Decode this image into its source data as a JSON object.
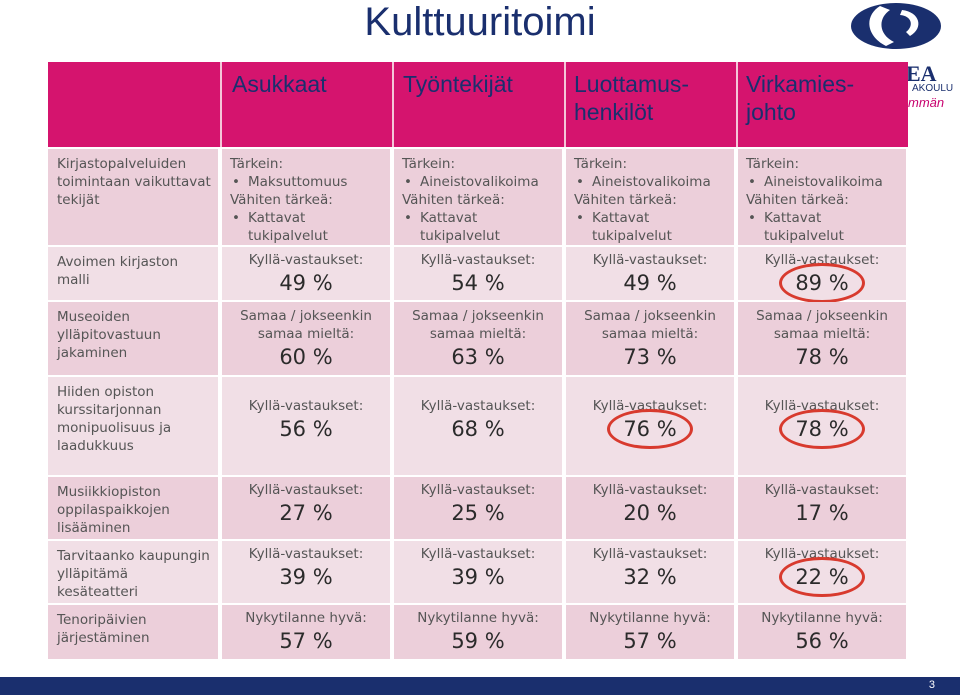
{
  "title": "Kulttuuritoimi",
  "logo": {
    "text1": "EA",
    "text2": "AKOULU",
    "text3": "mmän"
  },
  "headers": [
    "Asukkaat",
    "Työntekijät",
    "Luottamus-\nhenkilöt",
    "Virkamies-\njohto"
  ],
  "rows": [
    {
      "label": "Kirjastopalveluiden\ntoimintaan vaikuttavat\ntekijät",
      "cells": [
        {
          "l1": "Tärkein:",
          "l2": "Maksuttomuus",
          "l3": "Vähiten tärkeä:",
          "l4": "Kattavat",
          "l5": "tukipalvelut"
        },
        {
          "l1": "Tärkein:",
          "l2": "Aineistovalikoima",
          "l3": "Vähiten tärkeä:",
          "l4": "Kattavat",
          "l5": "tukipalvelut"
        },
        {
          "l1": "Tärkein:",
          "l2": "Aineistovalikoima",
          "l3": "Vähiten tärkeä:",
          "l4": "Kattavat",
          "l5": "tukipalvelut"
        },
        {
          "l1": "Tärkein:",
          "l2": "Aineistovalikoima",
          "l3": "Vähiten tärkeä:",
          "l4": "Kattavat",
          "l5": "tukipalvelut"
        }
      ]
    },
    {
      "label": "Avoimen kirjaston\nmalli",
      "cells": [
        {
          "caption": "Kyllä-vastaukset:",
          "value": "49 %"
        },
        {
          "caption": "Kyllä-vastaukset:",
          "value": "54 %"
        },
        {
          "caption": "Kyllä-vastaukset:",
          "value": "49 %"
        },
        {
          "caption": "Kyllä-vastaukset:",
          "value": "89 %"
        }
      ]
    },
    {
      "label": "Museoiden\nylläpitovastuun\njakaminen",
      "cells": [
        {
          "caption": "Samaa / jokseenkin\nsamaa mieltä:",
          "value": "60 %"
        },
        {
          "caption": "Samaa / jokseenkin\nsamaa mieltä:",
          "value": "63 %"
        },
        {
          "caption": "Samaa / jokseenkin\nsamaa mieltä:",
          "value": "73 %"
        },
        {
          "caption": "Samaa / jokseenkin\nsamaa mieltä:",
          "value": "78 %"
        }
      ]
    },
    {
      "label": "Hiiden opiston\nkurssitarjonnan\nmonipuolisuus ja\nlaadukkuus",
      "cells": [
        {
          "caption": "Kyllä-vastaukset:",
          "value": "56 %"
        },
        {
          "caption": "Kyllä-vastaukset:",
          "value": "68 %"
        },
        {
          "caption": "Kyllä-vastaukset:",
          "value": "76 %"
        },
        {
          "caption": "Kyllä-vastaukset:",
          "value": "78 %"
        }
      ]
    },
    {
      "label": "Musiikkiopiston\noppilaspaikkojen\nlisääminen",
      "cells": [
        {
          "caption": "Kyllä-vastaukset:",
          "value": "27 %"
        },
        {
          "caption": "Kyllä-vastaukset:",
          "value": "25 %"
        },
        {
          "caption": "Kyllä-vastaukset:",
          "value": "20 %"
        },
        {
          "caption": "Kyllä-vastaukset:",
          "value": "17 %"
        }
      ]
    },
    {
      "label": "Tarvitaanko kaupungin\nylläpitämä\nkesäteatteri",
      "cells": [
        {
          "caption": "Kyllä-vastaukset:",
          "value": "39 %"
        },
        {
          "caption": "Kyllä-vastaukset:",
          "value": "39 %"
        },
        {
          "caption": "Kyllä-vastaukset:",
          "value": "32 %"
        },
        {
          "caption": "Kyllä-vastaukset:",
          "value": "22 %"
        }
      ]
    },
    {
      "label": "Tenoripäivien\njärjestäminen",
      "cells": [
        {
          "caption": "Nykytilanne hyvä:",
          "value": "57 %"
        },
        {
          "caption": "Nykytilanne hyvä:",
          "value": "59 %"
        },
        {
          "caption": "Nykytilanne hyvä:",
          "value": "57 %"
        },
        {
          "caption": "Nykytilanne hyvä:",
          "value": "56 %"
        }
      ]
    }
  ],
  "page_number": "3",
  "colors": {
    "header_bg": "#d5146e",
    "header_text": "#1a2f6e",
    "row_light": "#f1dfe6",
    "row_mid": "#eccfda",
    "highlight_ring": "#d83a2e"
  }
}
